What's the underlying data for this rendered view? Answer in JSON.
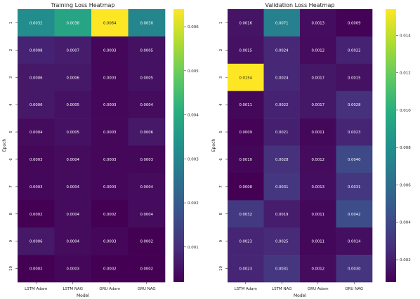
{
  "chart_data": [
    {
      "type": "heatmap",
      "title": "Training Loss Heatmap",
      "xlabel": "Model",
      "ylabel": "Epoch",
      "x_categories": [
        "LSTM Adam",
        "LSTM NAG",
        "GRU Adam",
        "GRU NAG"
      ],
      "y_categories": [
        "1",
        "2",
        "3",
        "4",
        "5",
        "6",
        "7",
        "8",
        "9",
        "10"
      ],
      "values": [
        [
          0.0032,
          0.0038,
          0.0064,
          0.003
        ],
        [
          0.0008,
          0.0007,
          0.0003,
          0.0005
        ],
        [
          0.0006,
          0.0006,
          0.0003,
          0.0005
        ],
        [
          0.0006,
          0.0005,
          0.0003,
          0.0004
        ],
        [
          0.0004,
          0.0005,
          0.0003,
          0.0006
        ],
        [
          0.0003,
          0.0004,
          0.0003,
          0.0003
        ],
        [
          0.0003,
          0.0004,
          0.0003,
          0.0004
        ],
        [
          0.0002,
          0.0004,
          0.0002,
          0.0004
        ],
        [
          0.0006,
          0.0004,
          0.0003,
          0.0002
        ],
        [
          0.0002,
          0.0003,
          0.0002,
          0.0002
        ]
      ],
      "value_labels": [
        [
          "0.0032",
          "0.0038",
          "0.0064",
          "0.0030"
        ],
        [
          "0.0008",
          "0.0007",
          "0.0003",
          "0.0005"
        ],
        [
          "0.0006",
          "0.0006",
          "0.0003",
          "0.0005"
        ],
        [
          "0.0006",
          "0.0005",
          "0.0003",
          "0.0004"
        ],
        [
          "0.0004",
          "0.0005",
          "0.0003",
          "0.0006"
        ],
        [
          "0.0003",
          "0.0004",
          "0.0003",
          "0.0003"
        ],
        [
          "0.0003",
          "0.0004",
          "0.0003",
          "0.0004"
        ],
        [
          "0.0002",
          "0.0004",
          "0.0002",
          "0.0004"
        ],
        [
          "0.0006",
          "0.0004",
          "0.0003",
          "0.0002"
        ],
        [
          "0.0002",
          "0.0003",
          "0.0002",
          "0.0002"
        ]
      ],
      "colormap": "viridis",
      "colorbar": {
        "range": [
          0.0002,
          0.0064
        ],
        "ticks": [
          0.001,
          0.002,
          0.003,
          0.004,
          0.005,
          0.006
        ],
        "tick_labels": [
          "0.001",
          "0.002",
          "0.003",
          "0.004",
          "0.005",
          "0.006"
        ]
      }
    },
    {
      "type": "heatmap",
      "title": "Validation Loss Heatmap",
      "xlabel": "Model",
      "ylabel": "Epoch",
      "x_categories": [
        "LSTM Adam",
        "LSTM NAG",
        "GRU Adam",
        "GRU NAG"
      ],
      "y_categories": [
        "1",
        "2",
        "3",
        "4",
        "5",
        "6",
        "7",
        "8",
        "9",
        "10"
      ],
      "values": [
        [
          0.0016,
          0.0071,
          0.0013,
          0.0009
        ],
        [
          0.0015,
          0.0024,
          0.0012,
          0.0022
        ],
        [
          0.0154,
          0.0024,
          0.0017,
          0.0015
        ],
        [
          0.0011,
          0.0022,
          0.0017,
          0.0028
        ],
        [
          0.0009,
          0.0021,
          0.0011,
          0.0023
        ],
        [
          0.001,
          0.0028,
          0.0012,
          0.004
        ],
        [
          0.0008,
          0.0031,
          0.0013,
          0.0031
        ],
        [
          0.0032,
          0.0019,
          0.0011,
          0.0042
        ],
        [
          0.0023,
          0.0025,
          0.0011,
          0.0014
        ],
        [
          0.0023,
          0.0031,
          0.0012,
          0.003
        ]
      ],
      "value_labels": [
        [
          "0.0016",
          "0.0071",
          "0.0013",
          "0.0009"
        ],
        [
          "0.0015",
          "0.0024",
          "0.0012",
          "0.0022"
        ],
        [
          "0.0154",
          "0.0024",
          "0.0017",
          "0.0015"
        ],
        [
          "0.0011",
          "0.0022",
          "0.0017",
          "0.0028"
        ],
        [
          "0.0009",
          "0.0021",
          "0.0011",
          "0.0023"
        ],
        [
          "0.0010",
          "0.0028",
          "0.0012",
          "0.0040"
        ],
        [
          "0.0008",
          "0.0031",
          "0.0013",
          "0.0031"
        ],
        [
          "0.0032",
          "0.0019",
          "0.0011",
          "0.0042"
        ],
        [
          "0.0023",
          "0.0025",
          "0.0011",
          "0.0014"
        ],
        [
          "0.0023",
          "0.0031",
          "0.0012",
          "0.0030"
        ]
      ],
      "colormap": "viridis",
      "colorbar": {
        "range": [
          0.0008,
          0.0154
        ],
        "ticks": [
          0.002,
          0.004,
          0.006,
          0.008,
          0.01,
          0.012,
          0.014
        ],
        "tick_labels": [
          "0.002",
          "0.004",
          "0.006",
          "0.008",
          "0.010",
          "0.012",
          "0.014"
        ]
      }
    }
  ]
}
